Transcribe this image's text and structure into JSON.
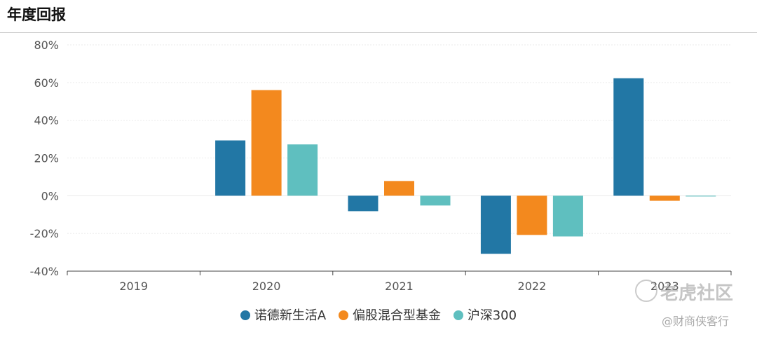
{
  "header": {
    "title": "年度回报"
  },
  "colors": {
    "s1": "#2277a5",
    "s2": "#f3891e",
    "s3": "#5fbfbf"
  },
  "chart_data": {
    "type": "bar",
    "categories": [
      "2019",
      "2020",
      "2021",
      "2022",
      "2023"
    ],
    "ylim": [
      -40,
      80
    ],
    "yticks": [
      80,
      60,
      40,
      20,
      0,
      -20,
      -40
    ],
    "ytick_labels": [
      "80%",
      "60%",
      "40%",
      "20%",
      "0%",
      "-20%",
      "-40%"
    ],
    "legend_position": "bottom",
    "grid": true,
    "series": [
      {
        "name": "诺德新生活A",
        "values": [
          null,
          29.3,
          -8.2,
          -30.8,
          62.3
        ]
      },
      {
        "name": "偏股混合型基金",
        "values": [
          null,
          56.0,
          7.8,
          -20.8,
          -2.7
        ]
      },
      {
        "name": "沪深300",
        "values": [
          null,
          27.2,
          -5.2,
          -21.6,
          -0.4
        ]
      }
    ]
  },
  "watermark": {
    "logo_text": "老虎社区",
    "handle": "@财商侠客行"
  }
}
